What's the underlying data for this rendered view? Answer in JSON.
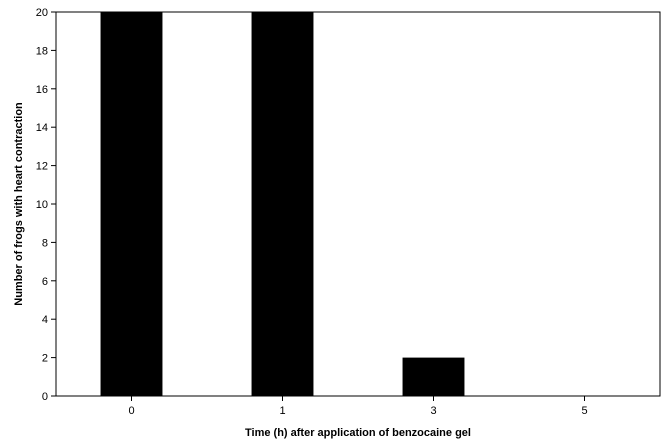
{
  "chart_data": {
    "type": "bar",
    "title": "",
    "xlabel": "Time (h) after application of benzocaine gel",
    "ylabel": "Number of frogs with heart contraction",
    "categories": [
      "0",
      "1",
      "3",
      "5"
    ],
    "values": [
      20,
      20,
      2,
      0
    ],
    "ylim": [
      0,
      20
    ],
    "yticks": [
      0,
      2,
      4,
      6,
      8,
      10,
      12,
      14,
      16,
      18,
      20
    ],
    "grid": false,
    "legend": "none",
    "bar_color": "#000000"
  }
}
